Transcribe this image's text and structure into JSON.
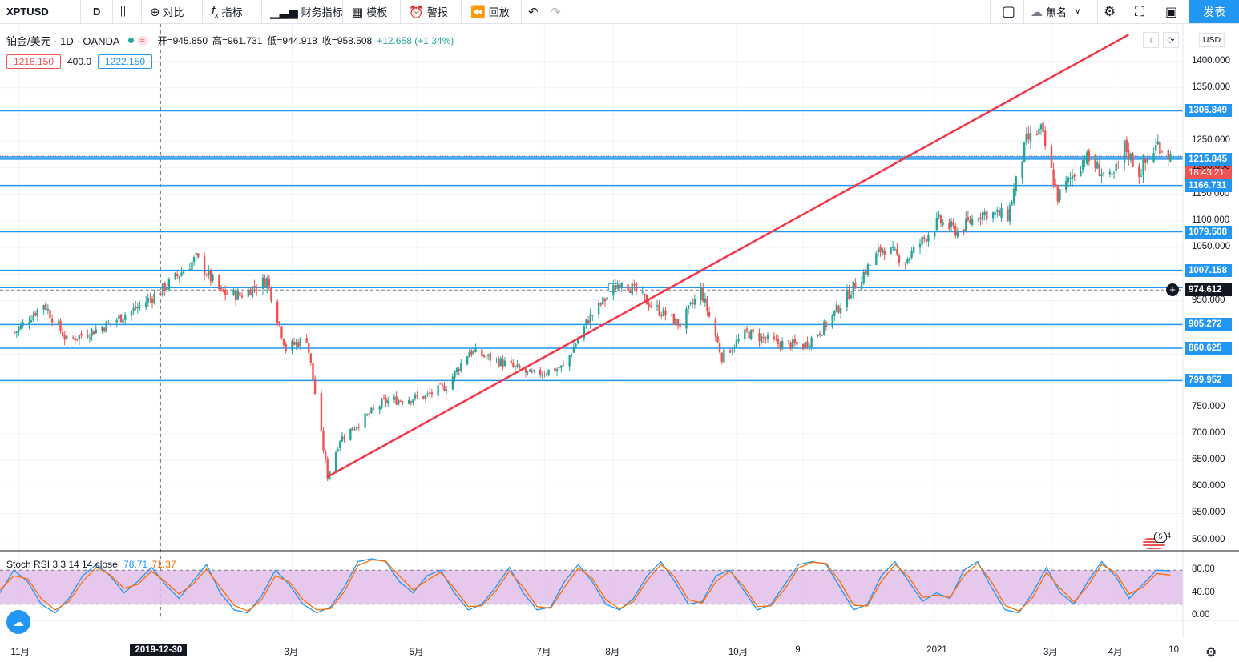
{
  "toolbar": {
    "symbol": "XPTUSD",
    "interval": "D",
    "compare": "对比",
    "indicators": "指标",
    "financials": "财务指标",
    "templates": "模板",
    "alert": "警报",
    "replay": "回放",
    "layout_name": "無名",
    "publish": "发表"
  },
  "legend": {
    "title": "铂金/美元 · 1D · OANDA",
    "open": "开=945.850",
    "high": "高=961.731",
    "low": "低=944.918",
    "close": "收=958.508",
    "change": "+12.658 (+1.34%)",
    "bid": "1218.150",
    "spread": "400.0",
    "ask": "1222.150"
  },
  "currency": "USD",
  "price_labels": {
    "current": "1220.150",
    "countdown": "18:43:21",
    "crosshair": "974.612"
  },
  "colors": {
    "up": "#26a69a",
    "down": "#ef5350",
    "hline": "#2196f3",
    "trend": "#f23645",
    "stoch_k": "#2196f3",
    "stoch_d": "#ff6d00",
    "stoch_band": "#e1bee7"
  },
  "chart_data": [
    {
      "type": "candlestick",
      "title": "铂金/美元 · 1D · OANDA",
      "ylim": [
        480,
        1470
      ],
      "y_ticks": [
        500,
        550,
        600,
        650,
        700,
        750,
        800,
        850,
        900,
        950,
        1000,
        1050,
        1100,
        1150,
        1200,
        1250,
        1300,
        1350,
        1400
      ],
      "x_labels": [
        "11月",
        "2019-12-30",
        "3月",
        "5月",
        "7月",
        "8月",
        "10月",
        "9",
        "2021",
        "3月",
        "4月",
        "10"
      ],
      "horizontal_levels": [
        1306.849,
        1220.15,
        1215.845,
        1166.731,
        1079.508,
        1007.158,
        974.612,
        905.272,
        860.625,
        799.952
      ],
      "trendline": {
        "from": {
          "x": "2020-03-19",
          "y": 619
        },
        "to": {
          "x": "2021-04-07",
          "y": 1450
        }
      },
      "close_path": [
        {
          "x": "2019-10-21",
          "y": 890
        },
        {
          "x": "2019-11-04",
          "y": 945
        },
        {
          "x": "2019-11-15",
          "y": 875
        },
        {
          "x": "2019-12-02",
          "y": 900
        },
        {
          "x": "2019-12-16",
          "y": 930
        },
        {
          "x": "2019-12-30",
          "y": 968
        },
        {
          "x": "2020-01-08",
          "y": 1000
        },
        {
          "x": "2020-01-16",
          "y": 1030
        },
        {
          "x": "2020-01-28",
          "y": 965
        },
        {
          "x": "2020-02-06",
          "y": 960
        },
        {
          "x": "2020-02-19",
          "y": 990
        },
        {
          "x": "2020-02-28",
          "y": 860
        },
        {
          "x": "2020-03-09",
          "y": 880
        },
        {
          "x": "2020-03-19",
          "y": 620
        },
        {
          "x": "2020-03-25",
          "y": 690
        },
        {
          "x": "2020-04-15",
          "y": 760
        },
        {
          "x": "2020-05-05",
          "y": 770
        },
        {
          "x": "2020-05-15",
          "y": 790
        },
        {
          "x": "2020-05-26",
          "y": 855
        },
        {
          "x": "2020-06-10",
          "y": 835
        },
        {
          "x": "2020-06-25",
          "y": 810
        },
        {
          "x": "2020-07-10",
          "y": 825
        },
        {
          "x": "2020-07-22",
          "y": 915
        },
        {
          "x": "2020-08-07",
          "y": 990
        },
        {
          "x": "2020-08-20",
          "y": 945
        },
        {
          "x": "2020-09-04",
          "y": 905
        },
        {
          "x": "2020-09-14",
          "y": 970
        },
        {
          "x": "2020-09-24",
          "y": 845
        },
        {
          "x": "2020-10-06",
          "y": 890
        },
        {
          "x": "2020-10-20",
          "y": 870
        },
        {
          "x": "2020-11-02",
          "y": 865
        },
        {
          "x": "2020-11-12",
          "y": 900
        },
        {
          "x": "2020-11-26",
          "y": 975
        },
        {
          "x": "2020-12-10",
          "y": 1050
        },
        {
          "x": "2020-12-21",
          "y": 1025
        },
        {
          "x": "2021-01-06",
          "y": 1100
        },
        {
          "x": "2021-01-15",
          "y": 1080
        },
        {
          "x": "2021-01-26",
          "y": 1115
        },
        {
          "x": "2021-02-08",
          "y": 1110
        },
        {
          "x": "2021-02-17",
          "y": 1250
        },
        {
          "x": "2021-02-24",
          "y": 1270
        },
        {
          "x": "2021-03-04",
          "y": 1145
        },
        {
          "x": "2021-03-17",
          "y": 1220
        },
        {
          "x": "2021-03-30",
          "y": 1175
        },
        {
          "x": "2021-04-05",
          "y": 1240
        },
        {
          "x": "2021-04-12",
          "y": 1190
        },
        {
          "x": "2021-04-21",
          "y": 1245
        },
        {
          "x": "2021-04-27",
          "y": 1220
        }
      ]
    },
    {
      "type": "line",
      "title": "Stoch RSI 3 3 14 14 close",
      "ylim": [
        0,
        100
      ],
      "y_ticks": [
        "0.00",
        "40.00",
        "80.00"
      ],
      "band": [
        20,
        80
      ],
      "series": [
        {
          "name": "78.71",
          "values": [
            40,
            80,
            60,
            20,
            5,
            30,
            70,
            90,
            70,
            40,
            60,
            85,
            55,
            30,
            60,
            90,
            40,
            10,
            5,
            35,
            80,
            55,
            20,
            5,
            15,
            50,
            95,
            100,
            95,
            60,
            40,
            70,
            80,
            40,
            10,
            20,
            50,
            85,
            40,
            10,
            15,
            60,
            90,
            60,
            20,
            10,
            30,
            70,
            95,
            60,
            20,
            25,
            70,
            80,
            45,
            10,
            20,
            55,
            90,
            95,
            90,
            50,
            10,
            20,
            70,
            95,
            60,
            25,
            40,
            30,
            80,
            95,
            50,
            10,
            5,
            40,
            85,
            40,
            20,
            60,
            95,
            70,
            30,
            55,
            80,
            78.71
          ]
        },
        {
          "name": "71.37",
          "values": [
            45,
            70,
            65,
            30,
            10,
            25,
            60,
            85,
            72,
            48,
            55,
            78,
            60,
            38,
            55,
            82,
            50,
            18,
            8,
            28,
            70,
            60,
            28,
            10,
            12,
            42,
            88,
            98,
            96,
            70,
            45,
            62,
            76,
            48,
            16,
            17,
            43,
            78,
            50,
            16,
            13,
            50,
            84,
            66,
            28,
            12,
            25,
            62,
            90,
            68,
            28,
            22,
            60,
            78,
            52,
            16,
            17,
            47,
            84,
            94,
            92,
            60,
            18,
            17,
            60,
            90,
            68,
            32,
            36,
            32,
            70,
            92,
            60,
            18,
            8,
            32,
            76,
            48,
            24,
            52,
            90,
            76,
            38,
            50,
            74,
            71.37
          ]
        }
      ]
    }
  ]
}
